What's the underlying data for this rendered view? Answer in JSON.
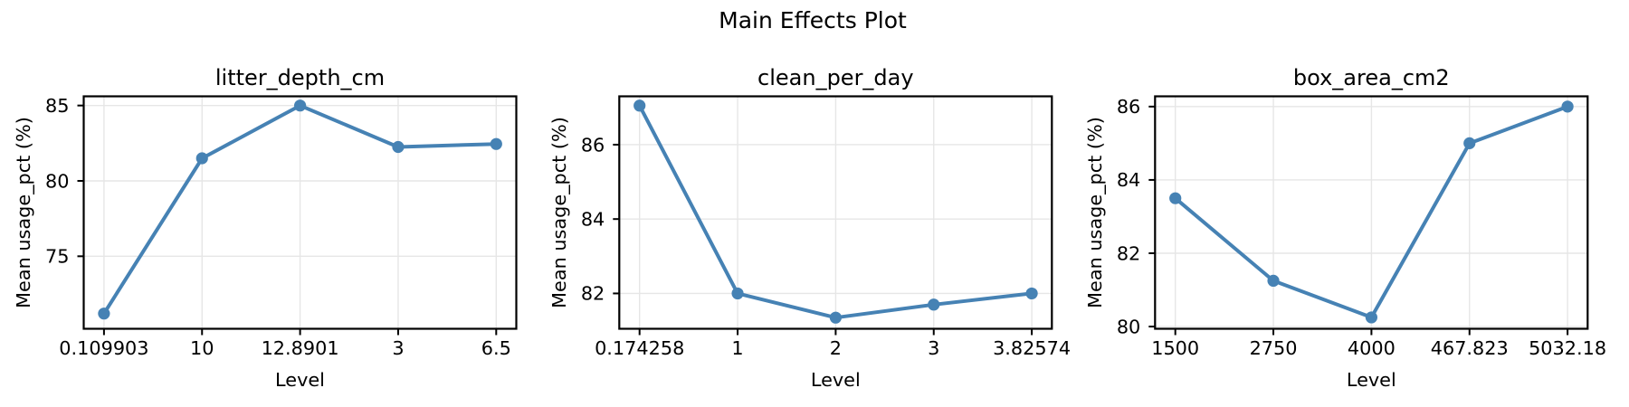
{
  "figure": {
    "suptitle": "Main Effects Plot"
  },
  "colors": {
    "line": "#4682B4",
    "grid": "#e6e6e6",
    "spine": "#000000",
    "text": "#000000"
  },
  "chart_data": [
    {
      "type": "line",
      "title": "litter_depth_cm",
      "xlabel": "Level",
      "ylabel": "Mean usage_pct (%)",
      "categories": [
        "0.109903",
        "10",
        "12.8901",
        "3",
        "6.5"
      ],
      "values": [
        71.2,
        81.5,
        85.0,
        82.25,
        82.45
      ],
      "yticks": [
        75,
        80,
        85
      ],
      "ylim": [
        70.19,
        85.61
      ],
      "grid": true,
      "legend_position": "none"
    },
    {
      "type": "line",
      "title": "clean_per_day",
      "xlabel": "Level",
      "ylabel": "Mean usage_pct (%)",
      "categories": [
        "0.174258",
        "1",
        "2",
        "3",
        "3.82574"
      ],
      "values": [
        87.05,
        82.0,
        81.35,
        81.7,
        82.0
      ],
      "yticks": [
        82,
        84,
        86
      ],
      "ylim": [
        81.05,
        87.3
      ],
      "grid": true,
      "legend_position": "none"
    },
    {
      "type": "line",
      "title": "box_area_cm2",
      "xlabel": "Level",
      "ylabel": "Mean usage_pct (%)",
      "categories": [
        "1500",
        "2750",
        "4000",
        "467.823",
        "5032.18"
      ],
      "values": [
        83.5,
        81.25,
        80.25,
        85.0,
        86.0
      ],
      "yticks": [
        80,
        82,
        84,
        86
      ],
      "ylim": [
        79.94,
        86.28
      ],
      "grid": true,
      "legend_position": "none"
    }
  ]
}
